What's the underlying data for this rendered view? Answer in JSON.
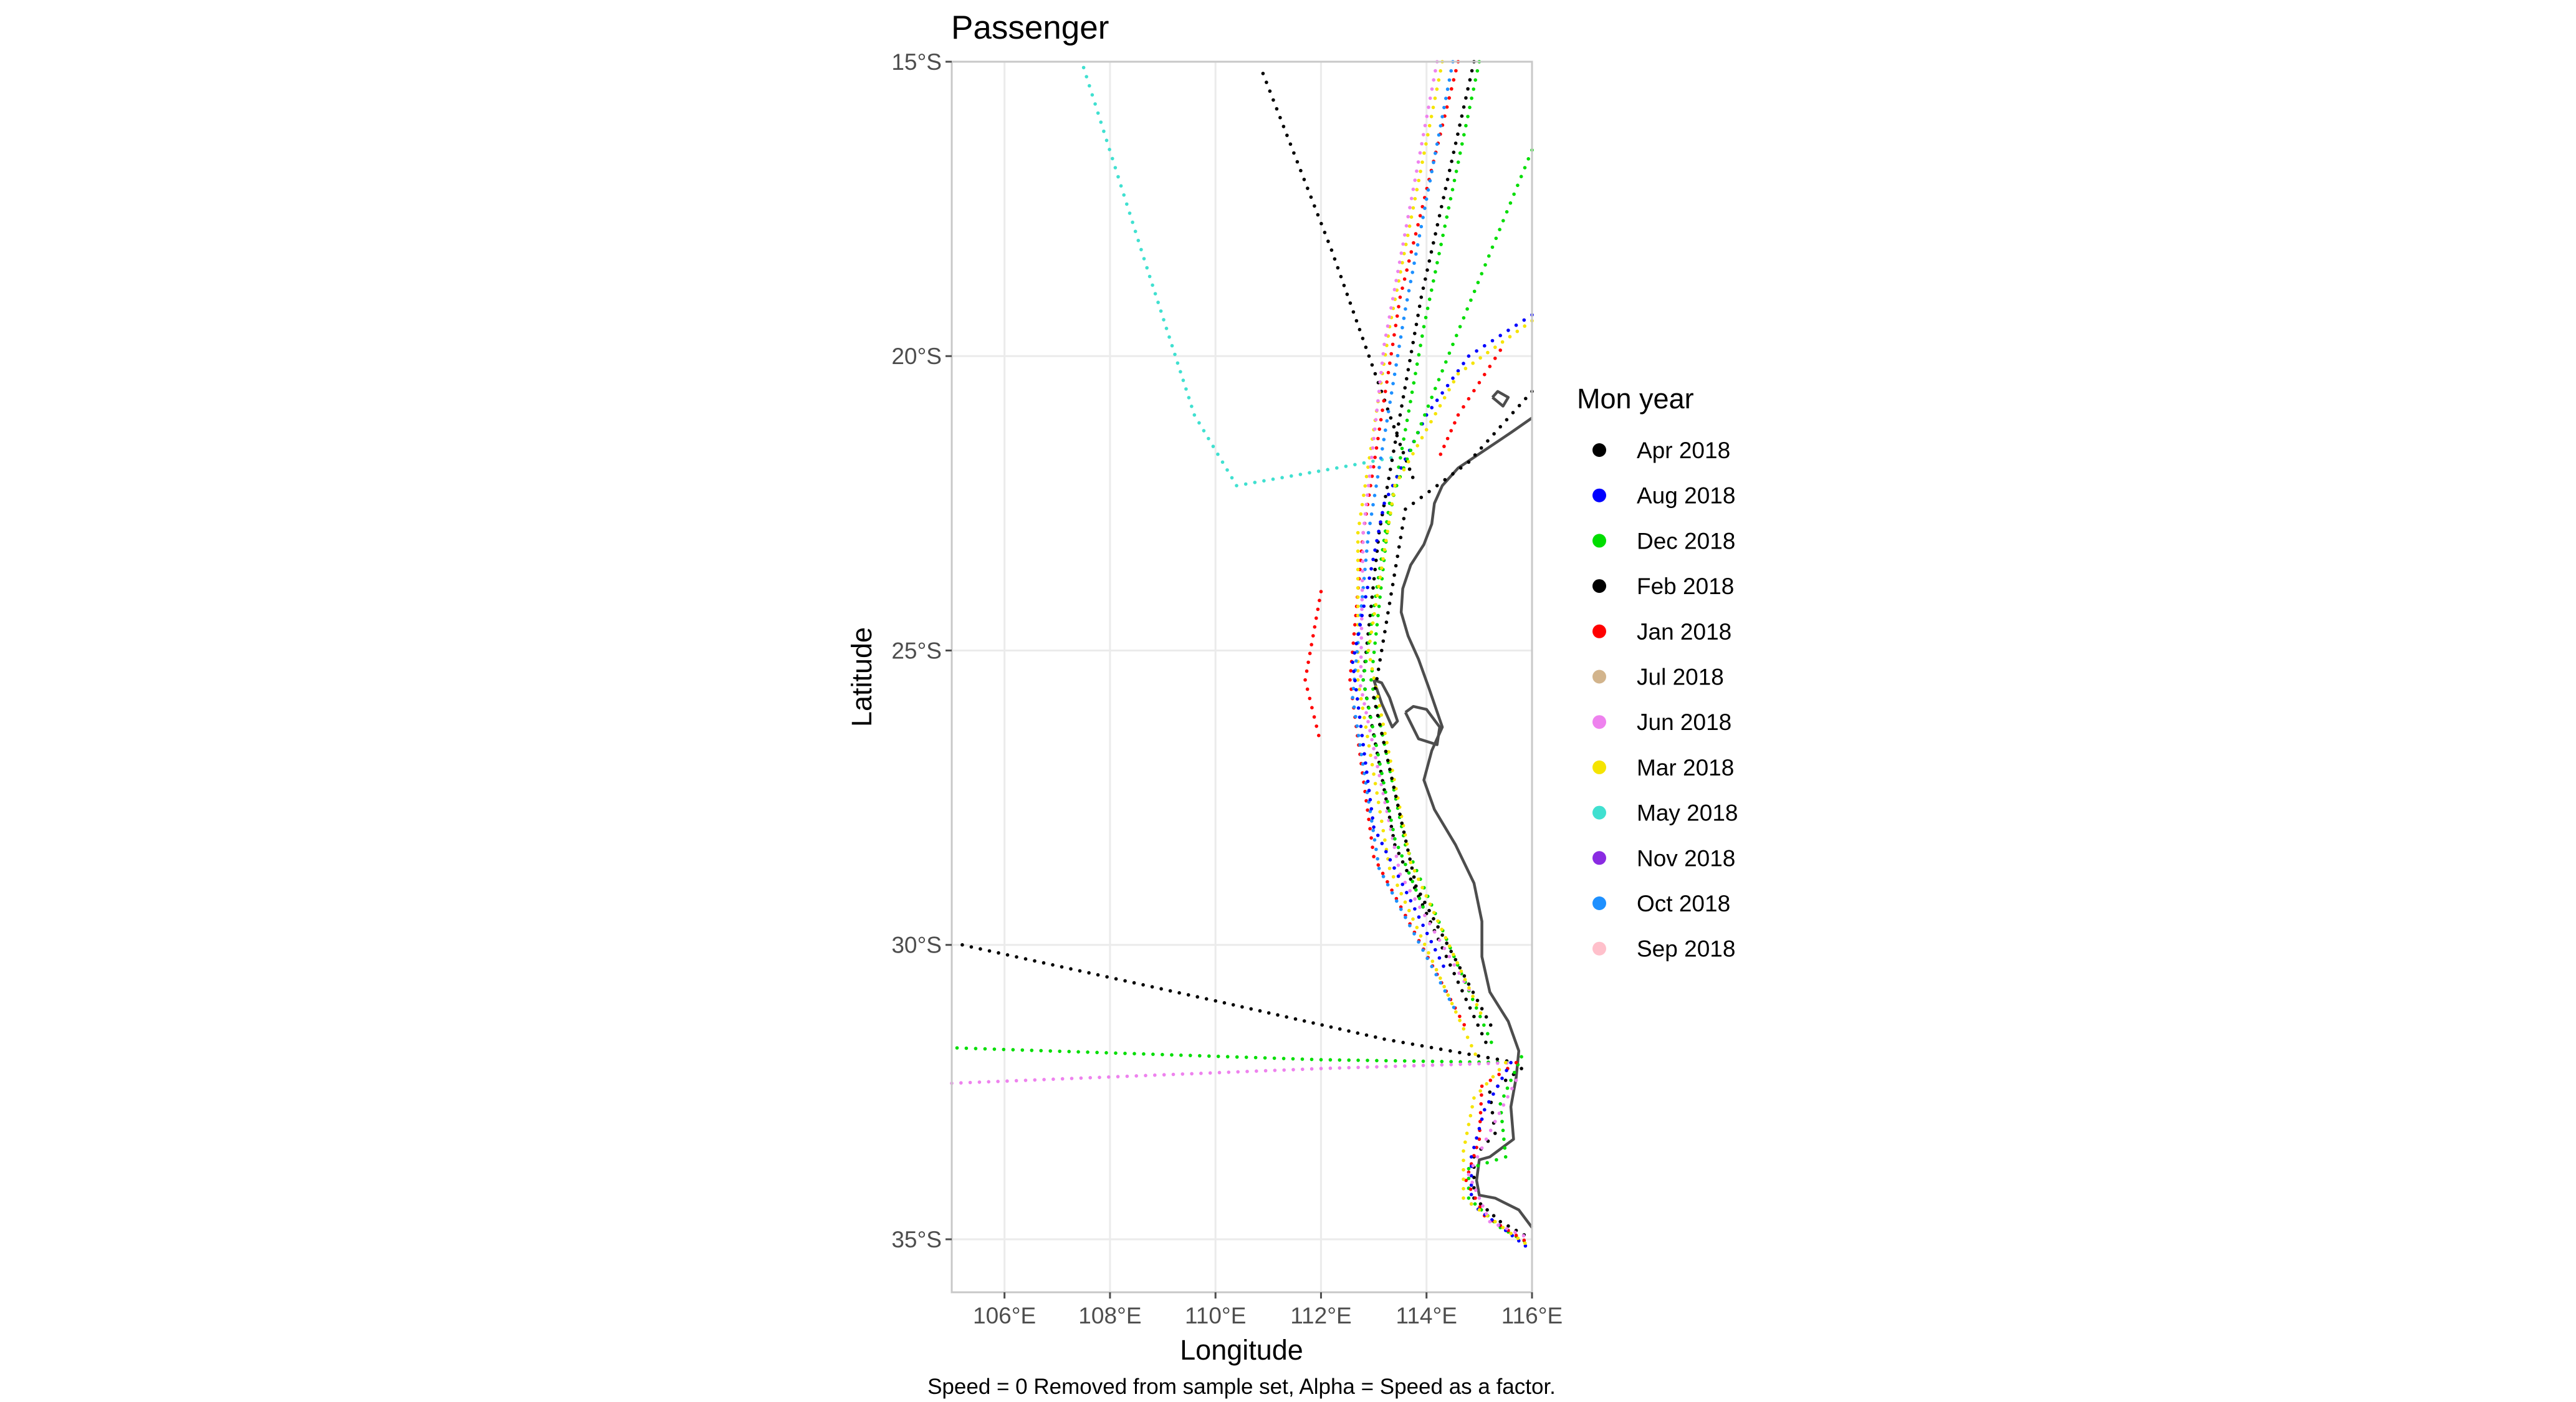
{
  "chart_data": {
    "type": "map-scatter",
    "title": "Passenger",
    "xlabel": "Longitude",
    "ylabel": "Latitude",
    "caption": "Speed = 0 Removed from sample set, Alpha = Speed as a factor.",
    "xlim": [
      105.0,
      116.0
    ],
    "ylim": [
      -35.9,
      -15.0
    ],
    "x_ticks": [
      {
        "value": 106,
        "label": "106°E"
      },
      {
        "value": 108,
        "label": "108°E"
      },
      {
        "value": 110,
        "label": "110°E"
      },
      {
        "value": 112,
        "label": "112°E"
      },
      {
        "value": 114,
        "label": "114°E"
      },
      {
        "value": 116,
        "label": "116°E"
      }
    ],
    "y_ticks": [
      {
        "value": -15,
        "label": "15°S"
      },
      {
        "value": -20,
        "label": "20°S"
      },
      {
        "value": -25,
        "label": "25°S"
      },
      {
        "value": -30,
        "label": "30°S"
      },
      {
        "value": -35,
        "label": "35°S"
      }
    ],
    "grid": true,
    "legend": {
      "title": "Mon year",
      "placement": "right",
      "entries": [
        {
          "label": "Apr 2018",
          "color": "#000000"
        },
        {
          "label": "Aug 2018",
          "color": "#0000ff"
        },
        {
          "label": "Dec 2018",
          "color": "#00dd00"
        },
        {
          "label": "Feb 2018",
          "color": "#000000"
        },
        {
          "label": "Jan 2018",
          "color": "#ff0000"
        },
        {
          "label": "Jul 2018",
          "color": "#d2b48c"
        },
        {
          "label": "Jun 2018",
          "color": "#ee82ee"
        },
        {
          "label": "Mar 2018",
          "color": "#f5e400"
        },
        {
          "label": "May 2018",
          "color": "#40e0d0"
        },
        {
          "label": "Nov 2018",
          "color": "#8a2be2"
        },
        {
          "label": "Oct 2018",
          "color": "#1e90ff"
        },
        {
          "label": "Sep 2018",
          "color": "#ffc0cb"
        }
      ]
    },
    "coastline": [
      [
        116.0,
        -21.05
      ],
      [
        115.6,
        -21.3
      ],
      [
        115.1,
        -21.6
      ],
      [
        114.6,
        -21.9
      ],
      [
        114.3,
        -22.2
      ],
      [
        114.15,
        -22.5
      ],
      [
        114.1,
        -22.85
      ],
      [
        113.95,
        -23.2
      ],
      [
        113.7,
        -23.55
      ],
      [
        113.55,
        -23.95
      ],
      [
        113.52,
        -24.35
      ],
      [
        113.65,
        -24.75
      ],
      [
        113.85,
        -25.15
      ],
      [
        114.05,
        -25.65
      ],
      [
        114.3,
        -26.3
      ],
      [
        114.1,
        -26.7
      ],
      [
        113.95,
        -27.2
      ],
      [
        114.15,
        -27.7
      ],
      [
        114.55,
        -28.3
      ],
      [
        114.9,
        -28.95
      ],
      [
        115.05,
        -29.6
      ],
      [
        115.05,
        -30.2
      ],
      [
        115.2,
        -30.8
      ],
      [
        115.55,
        -31.3
      ],
      [
        115.75,
        -31.8
      ],
      [
        115.7,
        -32.25
      ],
      [
        115.6,
        -32.75
      ],
      [
        115.65,
        -33.3
      ],
      [
        115.2,
        -33.6
      ],
      [
        115.0,
        -33.65
      ],
      [
        114.95,
        -34.0
      ],
      [
        115.0,
        -34.25
      ],
      [
        115.3,
        -34.3
      ],
      [
        115.75,
        -34.5
      ],
      [
        116.0,
        -34.8
      ]
    ],
    "islands": [
      [
        [
          113.0,
          -25.5
        ],
        [
          113.15,
          -25.9
        ],
        [
          113.35,
          -26.3
        ],
        [
          113.45,
          -26.2
        ],
        [
          113.3,
          -25.8
        ],
        [
          113.15,
          -25.55
        ],
        [
          113.0,
          -25.5
        ]
      ],
      [
        [
          113.6,
          -26.05
        ],
        [
          113.85,
          -26.5
        ],
        [
          114.2,
          -26.6
        ],
        [
          114.25,
          -26.3
        ],
        [
          114.0,
          -26.0
        ],
        [
          113.75,
          -25.95
        ],
        [
          113.6,
          -26.05
        ]
      ],
      [
        [
          115.25,
          -20.7
        ],
        [
          115.45,
          -20.85
        ],
        [
          115.55,
          -20.7
        ],
        [
          115.35,
          -20.6
        ],
        [
          115.25,
          -20.7
        ]
      ]
    ],
    "tracks": [
      {
        "series": "Feb 2018",
        "points": [
          [
            110.9,
            -15.2
          ],
          [
            112.2,
            -18.2
          ],
          [
            113.5,
            -21.5
          ],
          [
            113.8,
            -22.2
          ]
        ]
      },
      {
        "series": "May 2018",
        "points": [
          [
            107.5,
            -15.1
          ],
          [
            108.7,
            -18.5
          ],
          [
            109.6,
            -21.0
          ],
          [
            110.4,
            -22.2
          ],
          [
            112.3,
            -21.9
          ],
          [
            113.5,
            -21.7
          ]
        ]
      },
      {
        "series": "Apr 2018",
        "points": [
          [
            105.2,
            -30.0
          ],
          [
            110.0,
            -30.95
          ],
          [
            113.2,
            -31.6
          ],
          [
            115.7,
            -32.0
          ]
        ]
      },
      {
        "series": "Dec 2018",
        "points": [
          [
            105.1,
            -31.75
          ],
          [
            112.0,
            -31.95
          ],
          [
            115.7,
            -32.0
          ]
        ]
      },
      {
        "series": "Jun 2018",
        "points": [
          [
            105.0,
            -32.35
          ],
          [
            112.0,
            -32.1
          ],
          [
            115.7,
            -32.0
          ]
        ]
      },
      {
        "series": "Jan 2018",
        "points": [
          [
            114.6,
            -15.0
          ],
          [
            113.5,
            -19.0
          ],
          [
            112.8,
            -23.0
          ],
          [
            112.55,
            -25.5
          ],
          [
            113.0,
            -28.5
          ],
          [
            114.8,
            -31.5
          ]
        ]
      },
      {
        "series": "Feb 2018",
        "points": [
          [
            114.9,
            -15.0
          ],
          [
            113.9,
            -19.0
          ],
          [
            113.1,
            -23.0
          ],
          [
            112.8,
            -25.5
          ],
          [
            113.4,
            -28.3
          ],
          [
            115.2,
            -31.8
          ]
        ]
      },
      {
        "series": "Dec 2018",
        "points": [
          [
            115.0,
            -15.0
          ],
          [
            113.95,
            -19.5
          ],
          [
            113.25,
            -23.0
          ],
          [
            112.95,
            -25.5
          ],
          [
            113.6,
            -28.3
          ],
          [
            115.3,
            -31.8
          ]
        ]
      },
      {
        "series": "Mar 2018",
        "points": [
          [
            114.3,
            -15.0
          ],
          [
            113.3,
            -19.5
          ],
          [
            112.7,
            -23.0
          ],
          [
            112.7,
            -25.5
          ],
          [
            113.3,
            -28.7
          ],
          [
            115.0,
            -32.0
          ]
        ]
      },
      {
        "series": "Oct 2018",
        "points": [
          [
            114.5,
            -15.0
          ],
          [
            113.6,
            -19.2
          ],
          [
            112.9,
            -23.0
          ],
          [
            112.6,
            -25.8
          ],
          [
            113.1,
            -28.7
          ],
          [
            114.6,
            -31.2
          ]
        ]
      },
      {
        "series": "Jun 2018",
        "points": [
          [
            114.2,
            -15.0
          ],
          [
            113.2,
            -19.8
          ],
          [
            112.8,
            -23.0
          ],
          [
            112.75,
            -25.6
          ],
          [
            113.5,
            -28.8
          ],
          [
            114.9,
            -30.9
          ]
        ]
      },
      {
        "series": "Aug 2018",
        "points": [
          [
            116.0,
            -19.3
          ],
          [
            114.8,
            -20.0
          ],
          [
            114.0,
            -21.0
          ],
          [
            113.2,
            -22.5
          ],
          [
            112.6,
            -25.2
          ],
          [
            113.0,
            -28.0
          ],
          [
            114.4,
            -30.5
          ]
        ]
      },
      {
        "series": "Dec 2018",
        "points": [
          [
            116.0,
            -16.5
          ],
          [
            114.5,
            -19.8
          ],
          [
            113.3,
            -22.5
          ],
          [
            112.8,
            -25.5
          ],
          [
            113.4,
            -28.2
          ],
          [
            114.0,
            -29.5
          ]
        ]
      },
      {
        "series": "Mar 2018",
        "points": [
          [
            116.0,
            -19.4
          ],
          [
            114.6,
            -20.3
          ],
          [
            113.4,
            -22.2
          ],
          [
            112.9,
            -25.0
          ],
          [
            113.7,
            -28.6
          ],
          [
            115.1,
            -31.3
          ]
        ]
      },
      {
        "series": "Apr 2018",
        "points": [
          [
            116.0,
            -20.6
          ],
          [
            114.8,
            -21.8
          ],
          [
            113.6,
            -22.6
          ],
          [
            113.0,
            -25.8
          ],
          [
            113.8,
            -29.0
          ],
          [
            115.3,
            -31.5
          ]
        ]
      },
      {
        "series": "Jan 2018",
        "points": [
          [
            115.4,
            -19.9
          ],
          [
            114.6,
            -21.0
          ],
          [
            114.2,
            -21.8
          ]
        ]
      },
      {
        "series": "Jan 2018",
        "points": [
          [
            112.0,
            -24.0
          ],
          [
            111.7,
            -25.5
          ],
          [
            112.0,
            -26.6
          ]
        ]
      },
      {
        "series": "Feb 2018",
        "points": [
          [
            115.8,
            -32.1
          ],
          [
            115.2,
            -32.5
          ],
          [
            115.3,
            -33.2
          ],
          [
            114.9,
            -33.6
          ],
          [
            114.9,
            -34.3
          ],
          [
            115.4,
            -34.7
          ],
          [
            116.0,
            -35.0
          ]
        ]
      },
      {
        "series": "Dec 2018",
        "points": [
          [
            115.8,
            -31.9
          ],
          [
            115.4,
            -32.7
          ],
          [
            115.5,
            -33.6
          ],
          [
            114.8,
            -33.8
          ],
          [
            114.8,
            -34.3
          ],
          [
            115.4,
            -34.8
          ],
          [
            116.0,
            -35.1
          ]
        ]
      },
      {
        "series": "Jan 2018",
        "points": [
          [
            115.7,
            -32.0
          ],
          [
            115.05,
            -32.4
          ],
          [
            115.0,
            -33.3
          ],
          [
            114.75,
            -34.0
          ],
          [
            115.1,
            -34.6
          ],
          [
            116.0,
            -35.1
          ]
        ]
      },
      {
        "series": "Aug 2018",
        "points": [
          [
            115.6,
            -32.0
          ],
          [
            115.1,
            -32.8
          ],
          [
            114.85,
            -33.6
          ],
          [
            114.85,
            -34.4
          ],
          [
            115.5,
            -34.85
          ],
          [
            116.0,
            -35.2
          ]
        ]
      },
      {
        "series": "Mar 2018",
        "points": [
          [
            115.5,
            -32.0
          ],
          [
            114.9,
            -32.6
          ],
          [
            114.7,
            -33.5
          ],
          [
            114.7,
            -34.3
          ],
          [
            115.6,
            -34.9
          ],
          [
            116.0,
            -35.15
          ]
        ]
      },
      {
        "series": "Jun 2018",
        "points": [
          [
            115.7,
            -32.3
          ],
          [
            115.3,
            -33.0
          ],
          [
            114.8,
            -33.9
          ],
          [
            115.2,
            -34.7
          ],
          [
            116.0,
            -35.0
          ]
        ]
      }
    ]
  }
}
